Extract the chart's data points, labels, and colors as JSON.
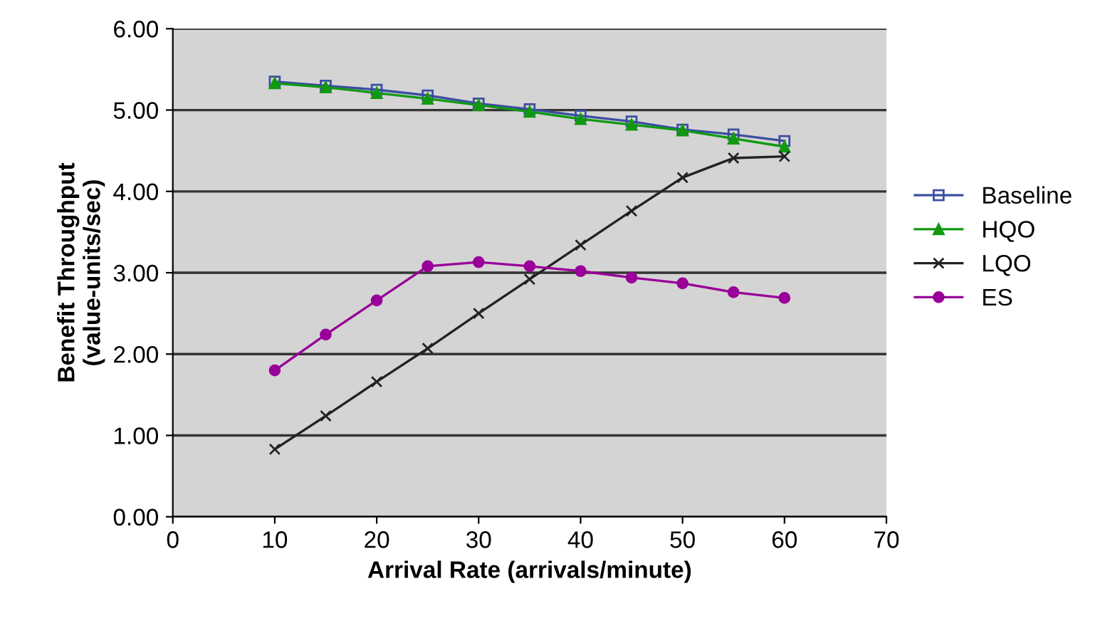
{
  "chart_data": {
    "type": "line",
    "xlabel": "Arrival Rate (arrivals/minute)",
    "ylabel": "Benefit Throughput\n(value-units/sec)",
    "x": [
      10,
      15,
      20,
      25,
      30,
      35,
      40,
      45,
      50,
      55,
      60
    ],
    "series": [
      {
        "name": "Baseline",
        "color": "#3b4fa0",
        "marker": "square",
        "values": [
          5.35,
          5.3,
          5.25,
          5.18,
          5.08,
          5.01,
          4.93,
          4.86,
          4.76,
          4.7,
          4.62
        ]
      },
      {
        "name": "HQO",
        "color": "#119911",
        "marker": "triangle",
        "values": [
          5.33,
          5.28,
          5.21,
          5.14,
          5.06,
          4.98,
          4.89,
          4.82,
          4.75,
          4.65,
          4.55
        ]
      },
      {
        "name": "LQO",
        "color": "#222222",
        "marker": "cross",
        "values": [
          0.83,
          1.24,
          1.66,
          2.07,
          2.5,
          2.92,
          3.34,
          3.76,
          4.17,
          4.41,
          4.43
        ]
      },
      {
        "name": "ES",
        "color": "#990099",
        "marker": "circle",
        "values": [
          1.8,
          2.24,
          2.66,
          3.08,
          3.13,
          3.08,
          3.02,
          2.94,
          2.87,
          2.76,
          2.69
        ]
      }
    ],
    "xlim": [
      0,
      70
    ],
    "xticks": [
      0,
      10,
      20,
      30,
      40,
      50,
      60,
      70
    ],
    "ylim": [
      0,
      6
    ],
    "yticks": [
      {
        "value": 0,
        "label": "0.00"
      },
      {
        "value": 1,
        "label": "1.00"
      },
      {
        "value": 2,
        "label": "2.00"
      },
      {
        "value": 3,
        "label": "3.00"
      },
      {
        "value": 4,
        "label": "4.00"
      },
      {
        "value": 5,
        "label": "5.00"
      },
      {
        "value": 6,
        "label": "6.00"
      }
    ],
    "grid": "y",
    "legend": "right",
    "line_style": "solid"
  }
}
